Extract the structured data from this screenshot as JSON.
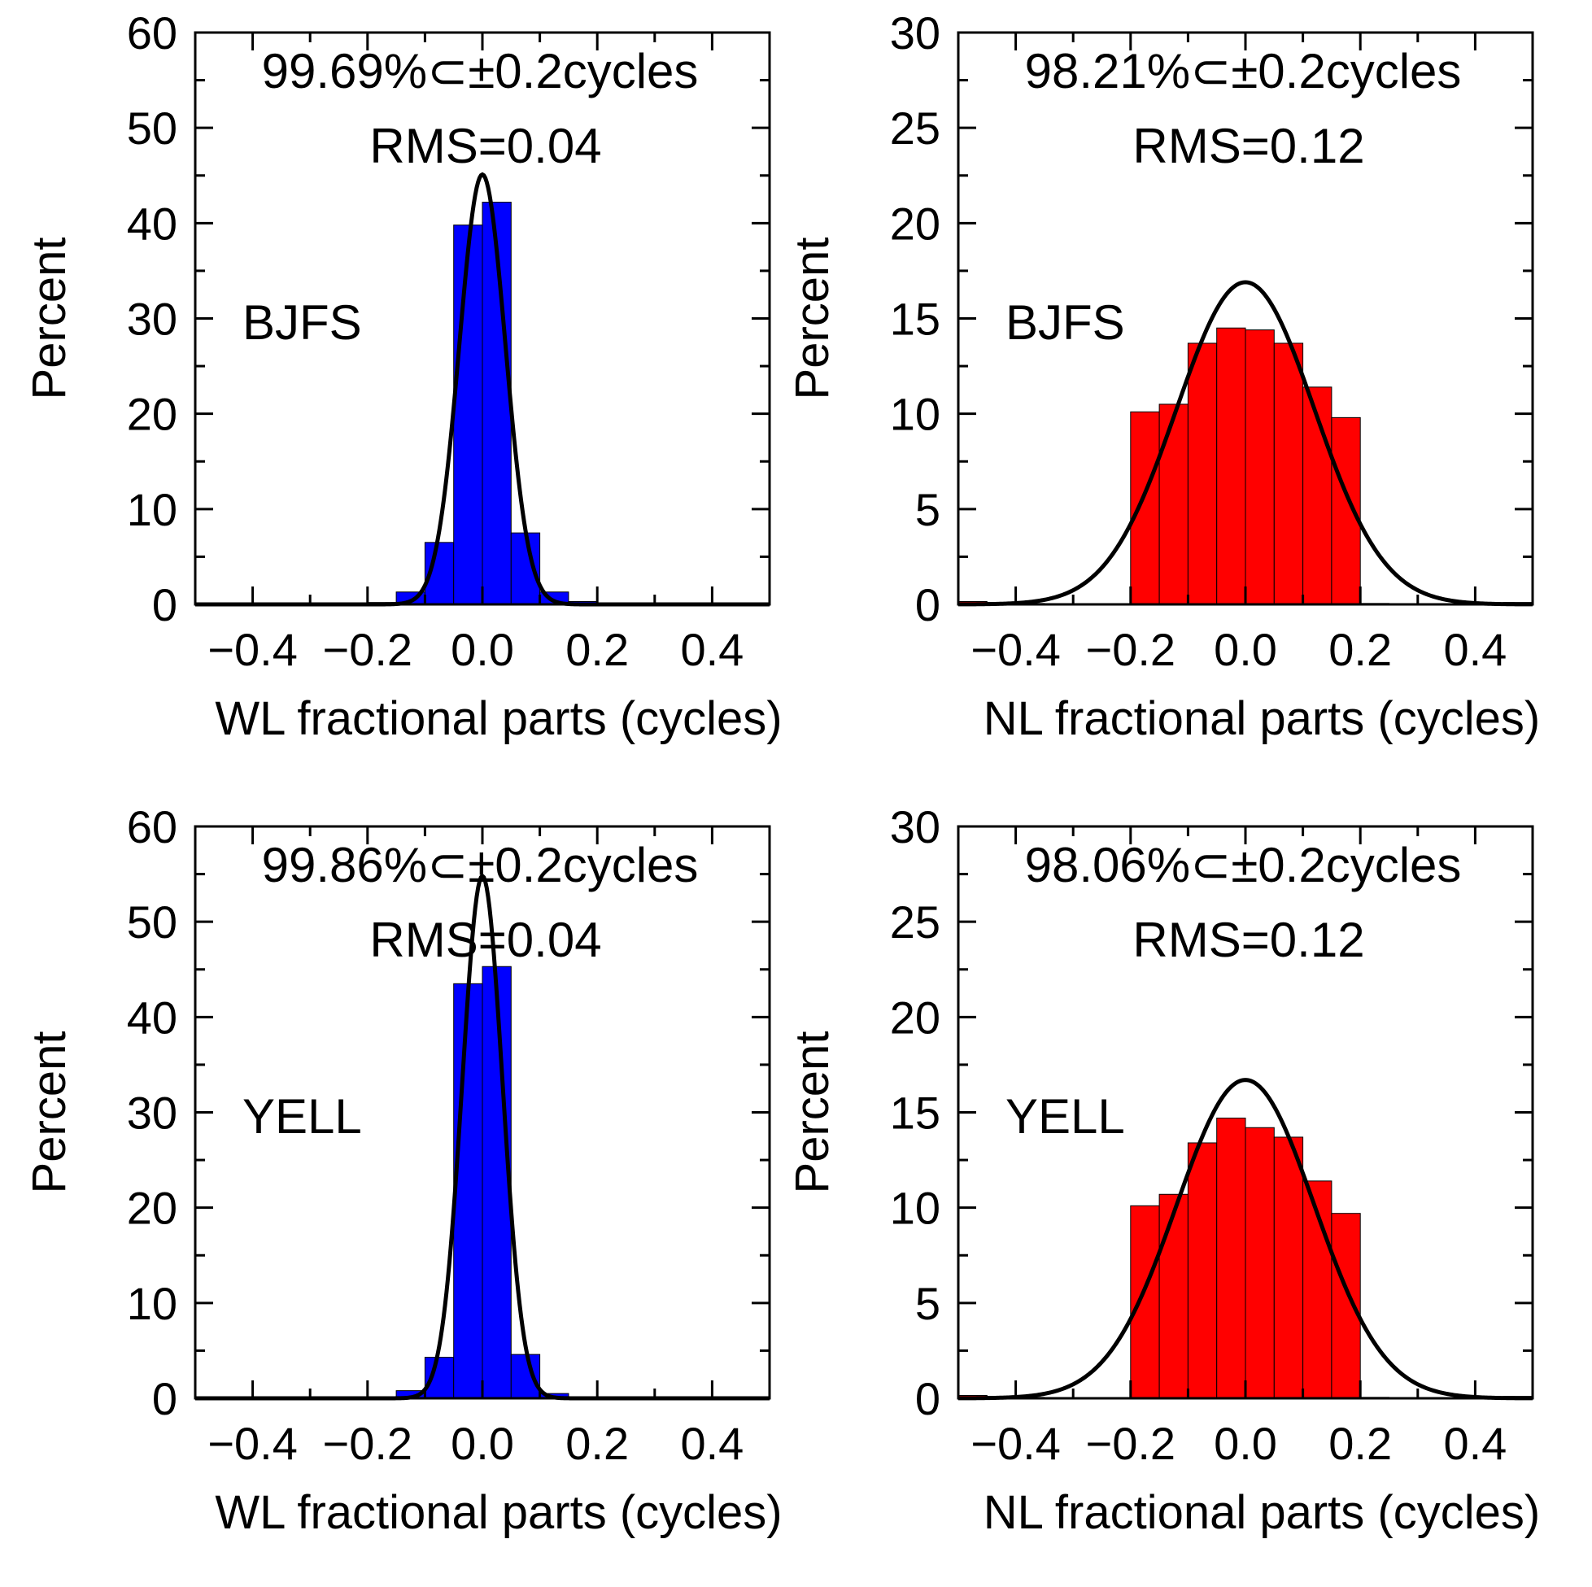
{
  "chart_data": [
    {
      "type": "bar",
      "panel": "top-left",
      "station": "BJFS",
      "title": "",
      "xlabel": "WL fractional parts (cycles)",
      "ylabel": "Percent",
      "xlim": [
        -0.5,
        0.5
      ],
      "ylim": [
        0,
        60
      ],
      "xticks": [
        -0.4,
        -0.2,
        0.0,
        0.2,
        0.4
      ],
      "xtick_labels": [
        "−0.4",
        "−0.2",
        "0.0",
        "0.2",
        "0.4"
      ],
      "yticks": [
        0,
        10,
        20,
        30,
        40,
        50,
        60
      ],
      "ytick_labels": [
        "0",
        "10",
        "20",
        "30",
        "40",
        "50",
        "60"
      ],
      "bar_color": "#0000ff",
      "bin_width": 0.05,
      "bins": [
        -0.3,
        -0.25,
        -0.2,
        -0.15,
        -0.1,
        -0.05,
        0.0,
        0.05,
        0.1,
        0.15,
        0.2,
        0.25,
        0.3,
        0.35,
        0.4,
        0.45
      ],
      "values": [
        0.05,
        0.1,
        0.2,
        1.3,
        6.5,
        39.8,
        42.2,
        7.5,
        1.3,
        0.3,
        0.1,
        0.05,
        0.0,
        0.0,
        0.0,
        0.0
      ],
      "curve": {
        "type": "gaussian",
        "mean": 0.0,
        "sigma": 0.04,
        "peak": 45.1
      },
      "annotation_lines": [
        "99.69%⊂±0.2cycles",
        "RMS=0.04"
      ]
    },
    {
      "type": "bar",
      "panel": "top-right",
      "station": "BJFS",
      "title": "",
      "xlabel": "NL fractional parts (cycles)",
      "ylabel": "Percent",
      "xlim": [
        -0.5,
        0.5
      ],
      "ylim": [
        0,
        30
      ],
      "xticks": [
        -0.4,
        -0.2,
        0.0,
        0.2,
        0.4
      ],
      "xtick_labels": [
        "−0.4",
        "−0.2",
        "0.0",
        "0.2",
        "0.4"
      ],
      "yticks": [
        0,
        5,
        10,
        15,
        20,
        25,
        30
      ],
      "ytick_labels": [
        "0",
        "5",
        "10",
        "15",
        "20",
        "25",
        "30"
      ],
      "bar_color": "#ff0000",
      "bin_width": 0.05,
      "bins": [
        -0.5,
        -0.45,
        -0.4,
        -0.35,
        -0.3,
        -0.25,
        -0.2,
        -0.15,
        -0.1,
        -0.05,
        0.0,
        0.05,
        0.1,
        0.15,
        0.2,
        0.25,
        0.3,
        0.35,
        0.4,
        0.45
      ],
      "values": [
        0.15,
        0.1,
        0.05,
        0.0,
        0.0,
        0.0,
        10.1,
        10.5,
        13.7,
        14.5,
        14.4,
        13.7,
        11.4,
        9.8,
        0.05,
        0.0,
        0.0,
        0.0,
        0.05,
        0.1
      ],
      "curve": {
        "type": "gaussian",
        "mean": 0.0,
        "sigma": 0.12,
        "peak": 16.9
      },
      "annotation_lines": [
        "98.21%⊂±0.2cycles",
        "RMS=0.12"
      ]
    },
    {
      "type": "bar",
      "panel": "bottom-left",
      "station": "YELL",
      "title": "",
      "xlabel": "WL fractional parts (cycles)",
      "ylabel": "Percent",
      "xlim": [
        -0.5,
        0.5
      ],
      "ylim": [
        0,
        60
      ],
      "xticks": [
        -0.4,
        -0.2,
        0.0,
        0.2,
        0.4
      ],
      "xtick_labels": [
        "−0.4",
        "−0.2",
        "0.0",
        "0.2",
        "0.4"
      ],
      "yticks": [
        0,
        10,
        20,
        30,
        40,
        50,
        60
      ],
      "ytick_labels": [
        "0",
        "10",
        "20",
        "30",
        "40",
        "50",
        "60"
      ],
      "bar_color": "#0000ff",
      "bin_width": 0.05,
      "bins": [
        -0.3,
        -0.25,
        -0.2,
        -0.15,
        -0.1,
        -0.05,
        0.0,
        0.05,
        0.1,
        0.15,
        0.2,
        0.25,
        0.3,
        0.35,
        0.4,
        0.45
      ],
      "values": [
        0.0,
        0.05,
        0.1,
        0.8,
        4.3,
        43.5,
        45.3,
        4.6,
        0.5,
        0.1,
        0.05,
        0.0,
        0.0,
        0.0,
        0.0,
        0.0
      ],
      "curve": {
        "type": "gaussian",
        "mean": 0.0,
        "sigma": 0.035,
        "peak": 54.8
      },
      "annotation_lines": [
        "99.86%⊂±0.2cycles",
        "RMS=0.04"
      ]
    },
    {
      "type": "bar",
      "panel": "bottom-right",
      "station": "YELL",
      "title": "",
      "xlabel": "NL fractional parts (cycles)",
      "ylabel": "Percent",
      "xlim": [
        -0.5,
        0.5
      ],
      "ylim": [
        0,
        30
      ],
      "xticks": [
        -0.4,
        -0.2,
        0.0,
        0.2,
        0.4
      ],
      "xtick_labels": [
        "−0.4",
        "−0.2",
        "0.0",
        "0.2",
        "0.4"
      ],
      "yticks": [
        0,
        5,
        10,
        15,
        20,
        25,
        30
      ],
      "ytick_labels": [
        "0",
        "5",
        "10",
        "15",
        "20",
        "25",
        "30"
      ],
      "bar_color": "#ff0000",
      "bin_width": 0.05,
      "bins": [
        -0.5,
        -0.45,
        -0.4,
        -0.35,
        -0.3,
        -0.25,
        -0.2,
        -0.15,
        -0.1,
        -0.05,
        0.0,
        0.05,
        0.1,
        0.15,
        0.2,
        0.25,
        0.3,
        0.35,
        0.4,
        0.45
      ],
      "values": [
        0.15,
        0.1,
        0.05,
        0.0,
        0.0,
        0.0,
        10.1,
        10.7,
        13.4,
        14.7,
        14.2,
        13.7,
        11.4,
        9.7,
        0.05,
        0.0,
        0.0,
        0.0,
        0.05,
        0.1
      ],
      "curve": {
        "type": "gaussian",
        "mean": 0.0,
        "sigma": 0.12,
        "peak": 16.7
      },
      "annotation_lines": [
        "98.06%⊂±0.2cycles",
        "RMS=0.12"
      ]
    }
  ]
}
